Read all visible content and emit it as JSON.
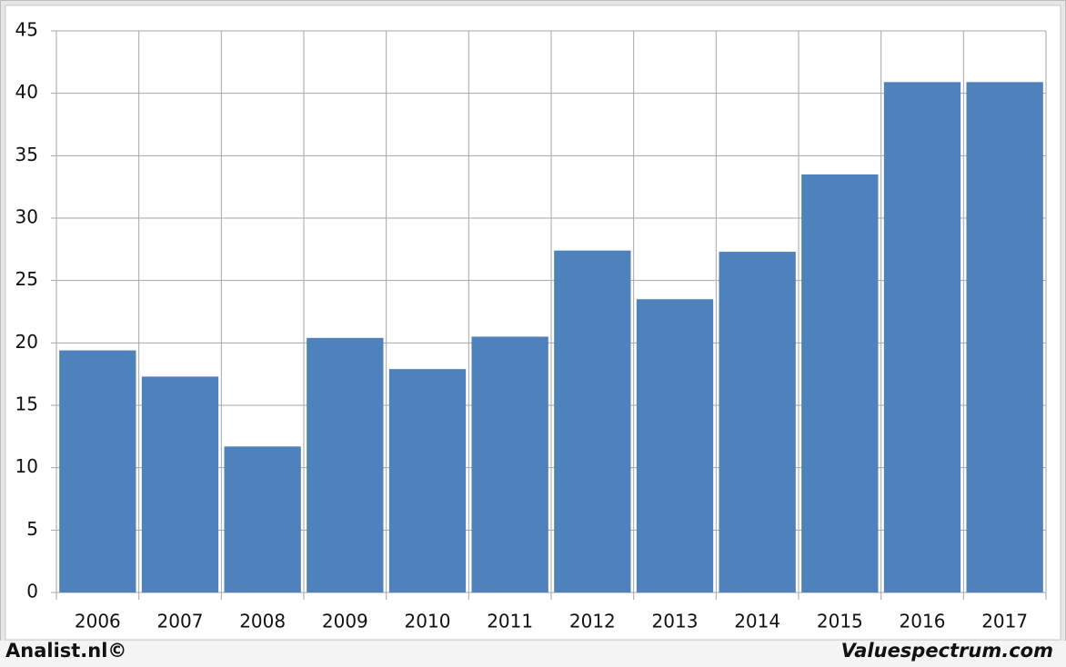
{
  "chart_data": {
    "type": "bar",
    "categories": [
      "2006",
      "2007",
      "2008",
      "2009",
      "2010",
      "2011",
      "2012",
      "2013",
      "2014",
      "2015",
      "2016",
      "2017"
    ],
    "values": [
      19.4,
      17.3,
      11.7,
      20.4,
      17.9,
      20.5,
      27.4,
      23.5,
      27.3,
      33.5,
      40.9,
      40.9
    ],
    "color": "#4f81bd",
    "ylim": [
      0,
      45
    ],
    "yticks": [
      0,
      5,
      10,
      15,
      20,
      25,
      30,
      35,
      40,
      45
    ],
    "grid": true,
    "footer_left": "Analist.nl©",
    "footer_right": "Valuespectrum.com"
  }
}
